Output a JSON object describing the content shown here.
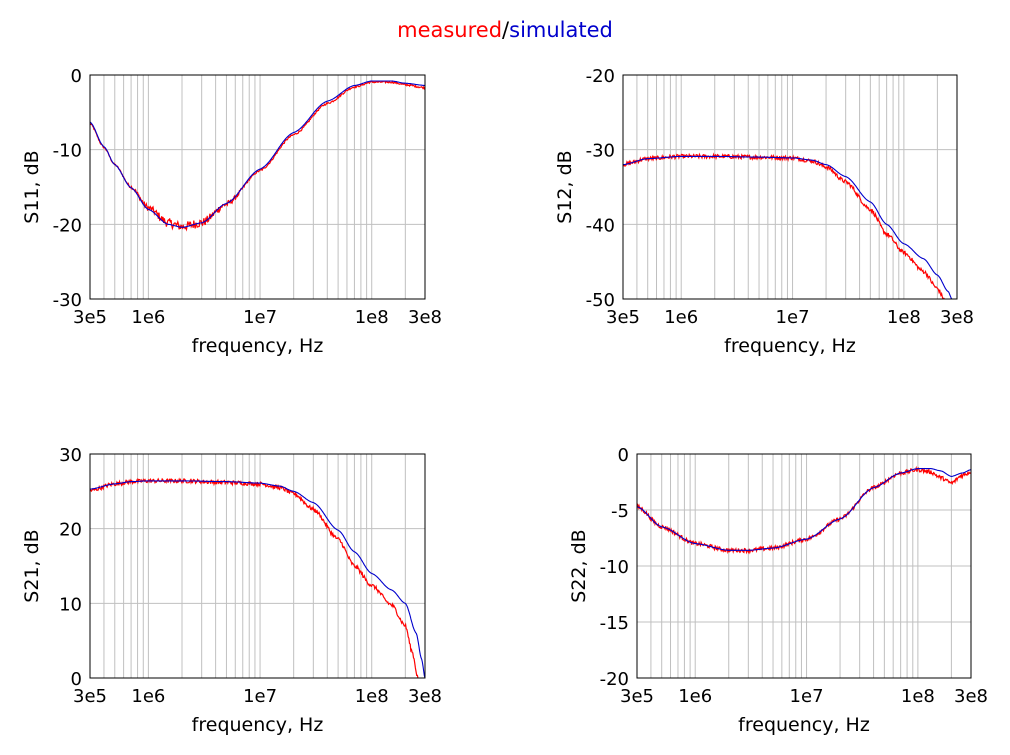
{
  "title": {
    "measured": "measured",
    "separator": "/",
    "simulated": "simulated"
  },
  "colors": {
    "measured": "#ff0000",
    "simulated": "#0000cc",
    "grid": "#c0c0c0"
  },
  "chart_data": [
    {
      "id": "s11",
      "type": "line",
      "xscale": "log",
      "xlim": [
        300000,
        300000000
      ],
      "ylim": [
        -30,
        0
      ],
      "xticks": [
        300000,
        1000000,
        10000000,
        100000000,
        300000000
      ],
      "xticklabels": [
        "3e5",
        "1e6",
        "1e7",
        "1e8",
        "3e8"
      ],
      "yticks": [
        0,
        -10,
        -20,
        -30
      ],
      "yticklabels": [
        "0",
        "-10",
        "-20",
        "-30"
      ],
      "xlabel": "frequency, Hz",
      "ylabel": "S11, dB",
      "grid": true,
      "series": [
        {
          "name": "measured",
          "color": "#ff0000",
          "noisy": true,
          "x": [
            300000,
            400000,
            500000,
            700000,
            1000000,
            1500000,
            2000000,
            3000000,
            5000000,
            10000000,
            20000000,
            40000000,
            70000000,
            100000000,
            150000000,
            200000000,
            300000000
          ],
          "y": [
            -6.5,
            -9.7,
            -12.0,
            -15.0,
            -17.8,
            -19.8,
            -20.3,
            -19.8,
            -17.3,
            -12.8,
            -8.0,
            -3.8,
            -1.6,
            -0.95,
            -0.95,
            -1.3,
            -1.7
          ]
        },
        {
          "name": "simulated",
          "color": "#0000cc",
          "noisy": false,
          "x": [
            300000,
            400000,
            500000,
            700000,
            1000000,
            1500000,
            2000000,
            3000000,
            5000000,
            10000000,
            20000000,
            40000000,
            70000000,
            100000000,
            150000000,
            200000000,
            300000000
          ],
          "y": [
            -6.3,
            -9.6,
            -12.0,
            -15.1,
            -18.0,
            -20.0,
            -20.4,
            -19.8,
            -17.2,
            -12.6,
            -7.7,
            -3.5,
            -1.4,
            -0.8,
            -0.8,
            -1.1,
            -1.4
          ]
        }
      ]
    },
    {
      "id": "s12",
      "type": "line",
      "xscale": "log",
      "xlim": [
        300000,
        300000000
      ],
      "ylim": [
        -50,
        -20
      ],
      "xticks": [
        300000,
        1000000,
        10000000,
        100000000,
        300000000
      ],
      "xticklabels": [
        "3e5",
        "1e6",
        "1e7",
        "1e8",
        "3e8"
      ],
      "yticks": [
        -20,
        -30,
        -40,
        -50
      ],
      "yticklabels": [
        "-20",
        "-30",
        "-40",
        "-50"
      ],
      "xlabel": "frequency, Hz",
      "ylabel": "S12, dB",
      "grid": true,
      "series": [
        {
          "name": "measured",
          "color": "#ff0000",
          "noisy": true,
          "x": [
            300000,
            500000,
            1000000,
            2000000,
            5000000,
            10000000,
            15000000,
            20000000,
            30000000,
            50000000,
            70000000,
            100000000,
            150000000,
            200000000,
            230000000
          ],
          "y": [
            -32.0,
            -31.2,
            -30.9,
            -30.9,
            -31.0,
            -31.1,
            -31.5,
            -32.3,
            -34.3,
            -38.0,
            -41.3,
            -43.8,
            -46.3,
            -48.6,
            -50.0
          ]
        },
        {
          "name": "simulated",
          "color": "#0000cc",
          "noisy": false,
          "x": [
            300000,
            500000,
            1000000,
            2000000,
            5000000,
            10000000,
            15000000,
            20000000,
            30000000,
            50000000,
            70000000,
            100000000,
            150000000,
            200000000,
            250000000,
            270000000
          ],
          "y": [
            -32.0,
            -31.2,
            -30.9,
            -30.9,
            -31.0,
            -31.1,
            -31.4,
            -32.0,
            -33.6,
            -37.0,
            -40.0,
            -42.6,
            -44.6,
            -46.8,
            -49.0,
            -50.0
          ]
        }
      ]
    },
    {
      "id": "s21",
      "type": "line",
      "xscale": "log",
      "xlim": [
        300000,
        300000000
      ],
      "ylim": [
        0,
        30
      ],
      "xticks": [
        300000,
        1000000,
        10000000,
        100000000,
        300000000
      ],
      "xticklabels": [
        "3e5",
        "1e6",
        "1e7",
        "1e8",
        "3e8"
      ],
      "yticks": [
        30,
        20,
        10,
        0
      ],
      "yticklabels": [
        "30",
        "20",
        "10",
        "0"
      ],
      "xlabel": "frequency, Hz",
      "ylabel": "S21, dB",
      "grid": true,
      "series": [
        {
          "name": "measured",
          "color": "#ff0000",
          "noisy": true,
          "x": [
            300000,
            500000,
            700000,
            1000000,
            2000000,
            5000000,
            10000000,
            15000000,
            20000000,
            30000000,
            50000000,
            70000000,
            100000000,
            150000000,
            200000000,
            230000000,
            260000000
          ],
          "y": [
            25.1,
            26.0,
            26.3,
            26.4,
            26.4,
            26.2,
            26.0,
            25.5,
            24.7,
            22.6,
            18.6,
            15.0,
            12.4,
            9.8,
            7.0,
            3.5,
            0.0
          ]
        },
        {
          "name": "simulated",
          "color": "#0000cc",
          "noisy": false,
          "x": [
            300000,
            500000,
            700000,
            1000000,
            2000000,
            5000000,
            10000000,
            15000000,
            20000000,
            30000000,
            50000000,
            70000000,
            100000000,
            150000000,
            200000000,
            250000000,
            280000000,
            300000000
          ],
          "y": [
            25.3,
            26.0,
            26.3,
            26.4,
            26.4,
            26.3,
            26.1,
            25.7,
            25.0,
            23.5,
            19.8,
            16.9,
            14.0,
            11.8,
            10.0,
            6.0,
            2.5,
            0.0
          ]
        }
      ]
    },
    {
      "id": "s22",
      "type": "line",
      "xscale": "log",
      "xlim": [
        300000,
        300000000
      ],
      "ylim": [
        -20,
        0
      ],
      "xticks": [
        300000,
        1000000,
        10000000,
        100000000,
        300000000
      ],
      "xticklabels": [
        "3e5",
        "1e6",
        "1e7",
        "1e8",
        "3e8"
      ],
      "yticks": [
        0,
        -5,
        -10,
        -15,
        -20
      ],
      "yticklabels": [
        "0",
        "-5",
        "-10",
        "-15",
        "-20"
      ],
      "xlabel": "frequency, Hz",
      "ylabel": "S22, dB",
      "grid": true,
      "series": [
        {
          "name": "measured",
          "color": "#ff0000",
          "noisy": true,
          "x": [
            300000,
            500000,
            1000000,
            2000000,
            3000000,
            5000000,
            10000000,
            20000000,
            40000000,
            70000000,
            100000000,
            130000000,
            160000000,
            200000000,
            250000000,
            300000000
          ],
          "y": [
            -4.7,
            -6.5,
            -8.0,
            -8.6,
            -8.6,
            -8.4,
            -7.6,
            -5.8,
            -3.0,
            -1.7,
            -1.4,
            -1.6,
            -2.1,
            -2.6,
            -1.9,
            -1.6
          ]
        },
        {
          "name": "simulated",
          "color": "#0000cc",
          "noisy": false,
          "x": [
            300000,
            500000,
            1000000,
            2000000,
            3000000,
            5000000,
            10000000,
            20000000,
            40000000,
            70000000,
            100000000,
            130000000,
            160000000,
            200000000,
            250000000,
            300000000
          ],
          "y": [
            -4.7,
            -6.5,
            -8.0,
            -8.6,
            -8.6,
            -8.4,
            -7.6,
            -5.8,
            -3.0,
            -1.7,
            -1.3,
            -1.3,
            -1.5,
            -2.0,
            -1.7,
            -1.4
          ]
        }
      ]
    }
  ]
}
